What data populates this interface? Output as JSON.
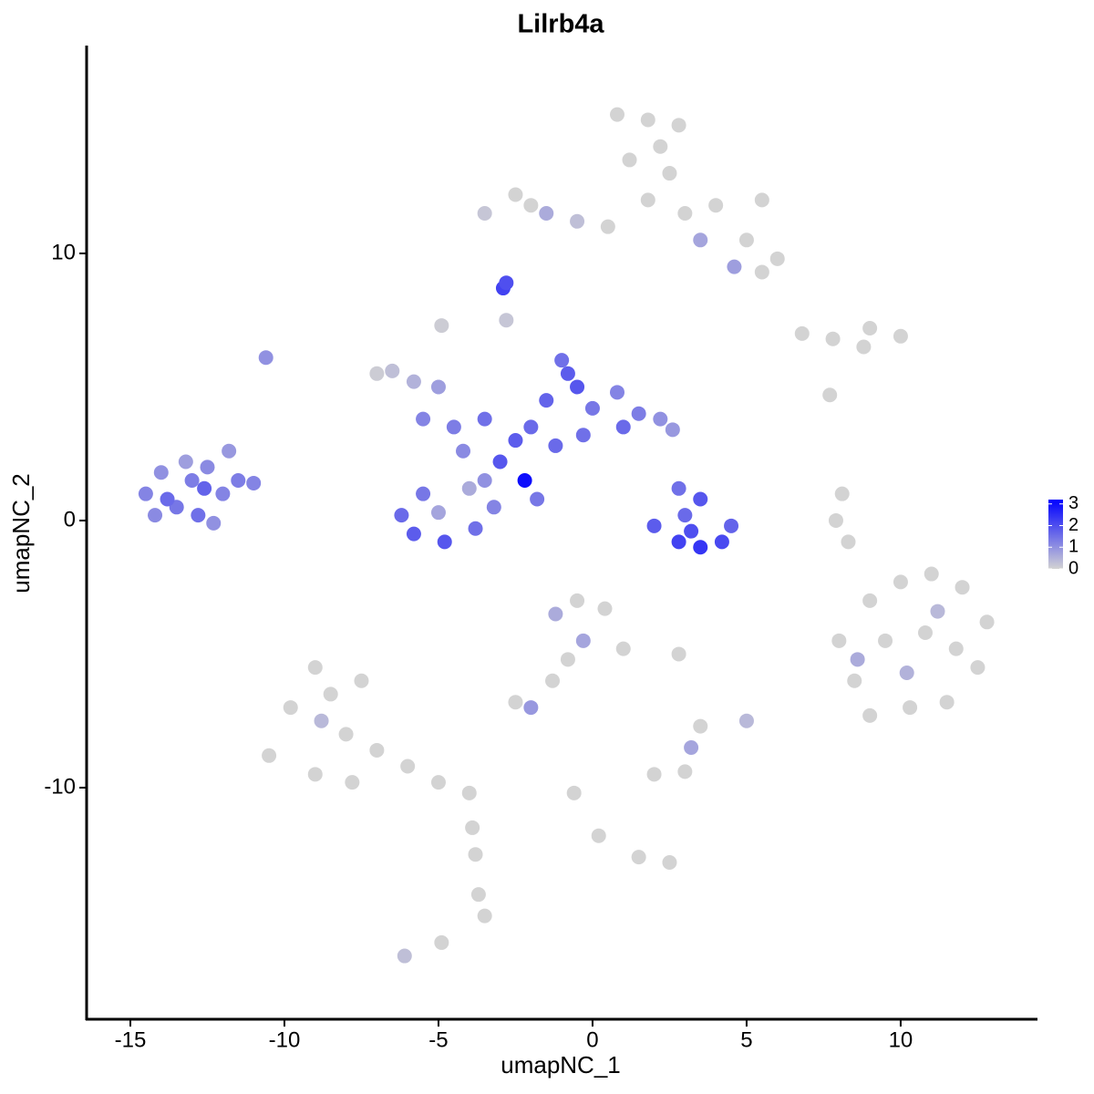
{
  "chart_data": {
    "type": "scatter",
    "title": "Lilrb4a",
    "x_label": "umapNC_1",
    "y_label": "umapNC_2",
    "xlim": [
      -16.42,
      14.44
    ],
    "ylim": [
      -18.67,
      17.78
    ],
    "xticks": [
      -15,
      -10,
      -5,
      0,
      5,
      10
    ],
    "yticks": [
      -10,
      0,
      10
    ],
    "colors": [
      "#d3d3d3",
      "#0000ff"
    ],
    "colorlim": [
      0,
      3.2
    ],
    "colorbar_ticks": [
      0,
      1,
      2,
      3
    ],
    "x": [
      -14.5,
      -14.0,
      -13.5,
      -13.0,
      -12.5,
      -12.8,
      -12.0,
      -11.5,
      -11.8,
      -12.3,
      -13.8,
      -13.2,
      -11.0,
      -14.2,
      -12.6,
      -10.6,
      -6.5,
      -5.8,
      -5.0,
      -4.5,
      -3.5,
      -2.5,
      -2.0,
      -1.5,
      -1.0,
      -0.5,
      0,
      0.8,
      1.5,
      2.2,
      2.6,
      -1.2,
      -3.0,
      -2.2,
      -1.8,
      -3.5,
      -4.0,
      -5.5,
      -6.2,
      -5.8,
      -4.8,
      -3.8,
      -3.2,
      -5.0,
      -4.2,
      -2.8,
      -4.9,
      -0.3,
      1.0,
      -0.8,
      -5.5,
      -7.0,
      2.0,
      2.8,
      3.5,
      4.2,
      4.5,
      3.0,
      3.5,
      2.8,
      3.2,
      -2.9,
      -2.8,
      0.8,
      1.8,
      2.8,
      1.2,
      2.5,
      1.8,
      3.0,
      4.0,
      5.5,
      5.0,
      6.0,
      4.6,
      -3.5,
      -2.5,
      -1.5,
      -0.5,
      0.5,
      2.2,
      5.5,
      3.5,
      -2.0,
      6.8,
      7.8,
      9.0,
      10.0,
      8.8,
      8.1,
      7.9,
      8.3,
      7.7,
      8.0,
      9.0,
      10.0,
      11.0,
      12.0,
      12.8,
      12.5,
      11.5,
      10.3,
      9.0,
      8.5,
      9.5,
      10.8,
      11.8,
      10.2,
      11.2,
      8.6,
      -1.2,
      -0.5,
      0.4,
      1.0,
      -0.3,
      -0.8,
      -2.5,
      -2.0,
      -1.3,
      1.5,
      2.5,
      0.2,
      -0.6,
      2.0,
      3.0,
      3.2,
      5.0,
      3.5,
      2.8,
      -10.5,
      -9.8,
      -9.0,
      -8.5,
      -8.0,
      -9.0,
      -7.8,
      -7.0,
      -6.0,
      -5.0,
      -4.0,
      -7.5,
      -8.8,
      -3.8,
      -3.7,
      -3.5,
      -3.9,
      -6.1,
      -4.9
    ],
    "y": [
      1.0,
      1.8,
      0.5,
      1.5,
      2.0,
      0.2,
      1.0,
      1.5,
      2.6,
      -0.1,
      0.8,
      2.2,
      1.4,
      0.2,
      1.2,
      6.1,
      5.6,
      5.2,
      5.0,
      3.5,
      3.8,
      3.0,
      3.5,
      4.5,
      6.0,
      5.0,
      4.2,
      4.8,
      4.0,
      3.8,
      3.4,
      2.8,
      2.2,
      1.5,
      0.8,
      1.5,
      1.2,
      1.0,
      0.2,
      -0.5,
      -0.8,
      -0.3,
      0.5,
      0.3,
      2.6,
      7.5,
      7.3,
      3.2,
      3.5,
      5.5,
      3.8,
      5.5,
      -0.2,
      -0.8,
      -1.0,
      -0.8,
      -0.2,
      0.2,
      0.8,
      1.2,
      -0.4,
      8.7,
      8.9,
      15.2,
      15.0,
      14.8,
      13.5,
      13.0,
      12.0,
      11.5,
      11.8,
      12.0,
      10.5,
      9.8,
      9.5,
      11.5,
      12.2,
      11.5,
      11.2,
      11.0,
      14.0,
      9.3,
      10.5,
      11.8,
      7.0,
      6.8,
      7.2,
      6.9,
      6.5,
      1.0,
      0.0,
      -0.8,
      4.7,
      -4.5,
      -3.0,
      -2.3,
      -2.0,
      -2.5,
      -3.8,
      -5.5,
      -6.8,
      -7.0,
      -7.3,
      -6.0,
      -4.5,
      -4.2,
      -4.8,
      -5.7,
      -3.4,
      -5.2,
      -3.5,
      -3.0,
      -3.3,
      -4.8,
      -4.5,
      -5.2,
      -6.8,
      -7.0,
      -6.0,
      -12.6,
      -12.8,
      -11.8,
      -10.2,
      -9.5,
      -9.4,
      -8.5,
      -7.5,
      -7.7,
      -5.0,
      -8.8,
      -7.0,
      -5.5,
      -6.5,
      -8.0,
      -9.5,
      -9.8,
      -8.6,
      -9.2,
      -9.8,
      -10.2,
      -6.0,
      -7.5,
      -12.5,
      -14.0,
      -14.8,
      -11.5,
      -16.3,
      -15.8
    ],
    "values": [
      1.2,
      1.0,
      1.4,
      1.3,
      1.1,
      1.5,
      1.2,
      1.3,
      0.9,
      1.0,
      1.6,
      0.8,
      1.2,
      1.1,
      1.7,
      1.0,
      0.3,
      0.5,
      0.8,
      1.3,
      1.5,
      1.8,
      1.6,
      1.7,
      1.5,
      1.9,
      1.4,
      1.2,
      1.3,
      1.0,
      0.9,
      1.6,
      1.9,
      3.0,
      1.4,
      1.0,
      0.6,
      1.4,
      1.6,
      1.8,
      1.9,
      1.5,
      1.2,
      0.7,
      1.1,
      0.2,
      0.1,
      1.5,
      1.6,
      1.8,
      1.2,
      0.1,
      1.8,
      2.2,
      2.4,
      2.1,
      1.7,
      1.6,
      1.9,
      1.5,
      2.0,
      2.2,
      2.0,
      0,
      0,
      0,
      0,
      0,
      0,
      0,
      0,
      0,
      0,
      0,
      0.8,
      0.2,
      0,
      0.6,
      0.3,
      0,
      0,
      0,
      0.7,
      0,
      0,
      0,
      0,
      0,
      0,
      0,
      0,
      0,
      0,
      0,
      0,
      0,
      0,
      0,
      0,
      0,
      0,
      0,
      0,
      0,
      0,
      0,
      0,
      0.5,
      0.4,
      0.6,
      0.6,
      0,
      0,
      0,
      0.7,
      0,
      0,
      0.9,
      0,
      0,
      0,
      0,
      0,
      0,
      0,
      0.7,
      0.4,
      0,
      0,
      0,
      0,
      0,
      0,
      0,
      0,
      0,
      0,
      0,
      0,
      0,
      0,
      0.4,
      0,
      0,
      0,
      0,
      0.3,
      0
    ]
  }
}
